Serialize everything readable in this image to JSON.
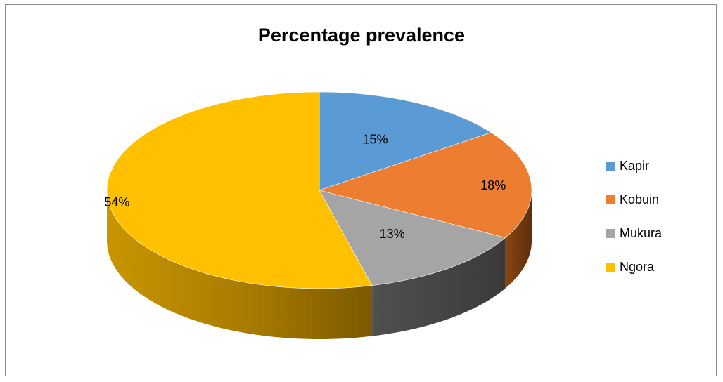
{
  "chart_data": {
    "type": "pie",
    "style": "3d",
    "title": "Percentage prevalence",
    "categories": [
      "Kapir",
      "Kobuin",
      "Mukura",
      "Ngora"
    ],
    "values": [
      15,
      18,
      13,
      54
    ],
    "data_labels": [
      "15%",
      "18%",
      "13%",
      "54%"
    ],
    "colors": [
      "#5b9bd5",
      "#ed7d31",
      "#a5a5a5",
      "#ffc000"
    ],
    "legend_position": "right"
  }
}
